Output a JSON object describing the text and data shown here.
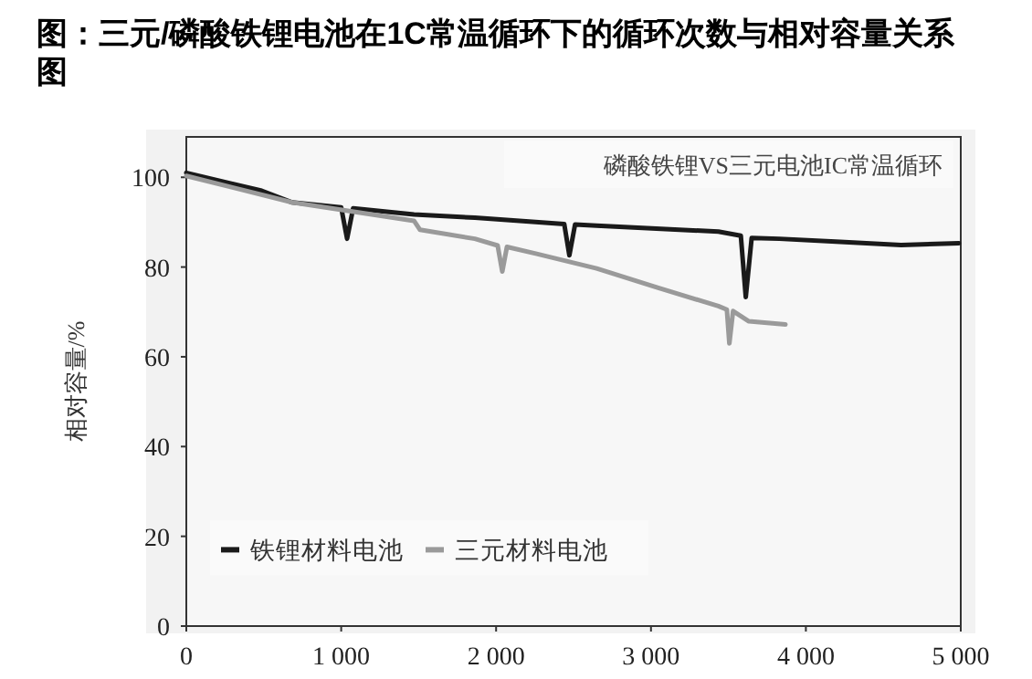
{
  "chart_data": {
    "type": "line",
    "title": "图：三元/磷酸铁锂电池在1C常温循环下的循环次数与相对容量关系图",
    "ylabel": "相对容量/%",
    "annotations": [
      "磷酸铁锂VS三元电池IC常温循环"
    ],
    "xlim": [
      0,
      5000
    ],
    "ylim": [
      0,
      109
    ],
    "xticks": [
      0,
      {
        "value": 1000,
        "label": "1 000"
      },
      {
        "value": 2000,
        "label": "2 000"
      },
      {
        "value": 3000,
        "label": "3 000"
      },
      {
        "value": 4000,
        "label": "4 000"
      },
      {
        "value": 5000,
        "label": "5 000"
      }
    ],
    "yticks": [
      0,
      20,
      40,
      60,
      80,
      100
    ],
    "grid": false,
    "legend": "bottom left",
    "line_style": "solid",
    "series": [
      {
        "name": "铁锂材料电池",
        "color": "#1a1a1a",
        "x": [
          0,
          487,
          684,
          1000,
          1038,
          1077,
          1470,
          1863,
          2440,
          2473,
          2510,
          2649,
          3435,
          3580,
          3612,
          3650,
          3829,
          4222,
          4615,
          4988
        ],
        "values": [
          101,
          97,
          94.4,
          93.3,
          86.3,
          93.1,
          91.7,
          91,
          89.6,
          82.6,
          89.5,
          89.2,
          87.9,
          87,
          73.3,
          86.5,
          86.3,
          85.6,
          84.9,
          85.3
        ]
      },
      {
        "name": "三元材料电池",
        "color": "#9a9a9a",
        "x": [
          0,
          684,
          1470,
          1509,
          1863,
          2010,
          2040,
          2070,
          2256,
          2649,
          3042,
          3435,
          3490,
          3506,
          3530,
          3632,
          3868
        ],
        "values": [
          100.3,
          94.4,
          90.3,
          88.3,
          86.3,
          84.8,
          79,
          84.5,
          83,
          79.7,
          75.4,
          71.3,
          70.5,
          63,
          70.2,
          67.9,
          67.2
        ]
      }
    ]
  }
}
